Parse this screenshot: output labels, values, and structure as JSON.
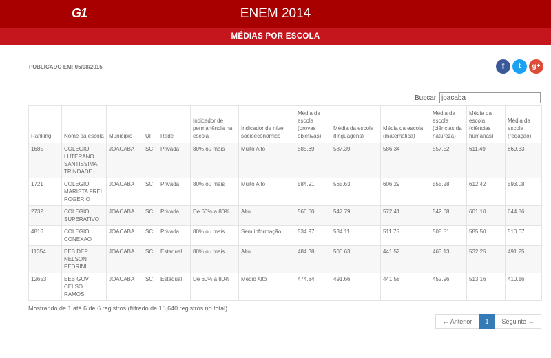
{
  "header": {
    "logo": "G1",
    "title": "ENEM 2014",
    "subtitle": "MÉDIAS POR ESCOLA"
  },
  "published": "PUBLICADO EM: 05/08/2015",
  "share": {
    "facebook": "f",
    "twitter": "t",
    "google": "g+"
  },
  "search": {
    "label": "Buscar:",
    "value": "joacaba"
  },
  "table": {
    "columns": [
      "Ranking",
      "Nome da escola",
      "Município",
      "UF",
      "Rede",
      "Indicador de permanência na escola",
      "Indicador de nível socioeconômico",
      "Média da escola (provas objetivas)",
      "Média da escola (linguagens)",
      "Média da escola (matemática)",
      "Média da escola (ciências da natureza)",
      "Média da escola (ciências humanas)",
      "Média da escola (redação)"
    ],
    "rows": [
      [
        "1685",
        "COLEGIO LUTERANO SANTISSIMA TRINDADE",
        "JOACABA",
        "SC",
        "Privada",
        "80% ou mais",
        "Muito Alto",
        "585.69",
        "587.39",
        "586.34",
        "557.52",
        "611.49",
        "669.33"
      ],
      [
        "1721",
        "COLEGIO MARISTA FREI ROGERIO",
        "JOACABA",
        "SC",
        "Privada",
        "80% ou mais",
        "Muito Alto",
        "584.91",
        "565.63",
        "606.29",
        "555.28",
        "612.42",
        "593.08"
      ],
      [
        "2732",
        "COLEGIO SUPERATIVO",
        "JOACABA",
        "SC",
        "Privada",
        "De 60% a 80%",
        "Alto",
        "566.00",
        "547.79",
        "572.41",
        "542.68",
        "601.10",
        "644.86"
      ],
      [
        "4816",
        "COLEGIO CONEXAO",
        "JOACABA",
        "SC",
        "Privada",
        "80% ou mais",
        "Sem informação",
        "534.97",
        "534.11",
        "511.75",
        "508.51",
        "585.50",
        "510.67"
      ],
      [
        "11354",
        "EEB DEP NELSON PEDRINI",
        "JOACABA",
        "SC",
        "Estadual",
        "80% ou mais",
        "Alto",
        "484.38",
        "500.63",
        "441.52",
        "463.13",
        "532.25",
        "491.25"
      ],
      [
        "12653",
        "EEB GOV CELSO RAMOS",
        "JOACABA",
        "SC",
        "Estadual",
        "De 60% a 80%",
        "Médio Alto",
        "474.84",
        "491.66",
        "441.58",
        "452.96",
        "513.16",
        "410.16"
      ]
    ]
  },
  "info": "Mostrando de 1 até 6 de 6 registros (filtrado de 15,640 registros no total)",
  "pagination": {
    "prev": "← Anterior",
    "current": "1",
    "next": "Seguinte →"
  }
}
